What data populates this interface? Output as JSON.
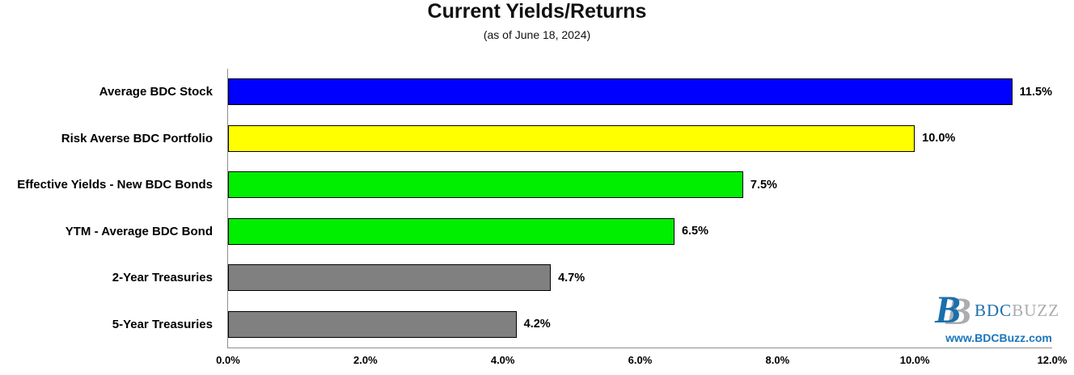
{
  "title": "Current Yields/Returns",
  "subtitle": "(as of June 18, 2024)",
  "chart_data": {
    "type": "bar",
    "orientation": "horizontal",
    "title": "Current Yields/Returns",
    "subtitle": "(as of June 18, 2024)",
    "categories": [
      "Average BDC Stock",
      "Risk Averse BDC Portfolio",
      "Effective Yields - New BDC Bonds",
      "YTM - Average BDC Bond",
      "2-Year Treasuries",
      "5-Year Treasuries"
    ],
    "values": [
      11.5,
      10.0,
      7.5,
      6.5,
      4.7,
      4.2
    ],
    "value_labels": [
      "11.5%",
      "10.0%",
      "7.5%",
      "6.5%",
      "4.7%",
      "4.2%"
    ],
    "bar_colors": [
      "#0000ff",
      "#ffff00",
      "#00ee00",
      "#00ee00",
      "#808080",
      "#808080"
    ],
    "bar_border_color": "#000000",
    "xlim": [
      0,
      12
    ],
    "x_ticks": [
      "0.0%",
      "2.0%",
      "4.0%",
      "6.0%",
      "8.0%",
      "10.0%",
      "12.0%"
    ],
    "xlabel": "",
    "ylabel": "",
    "grid": false,
    "legend": "none",
    "axis_line_color": "#8f8f8f"
  },
  "branding": {
    "monogram_letter": "B",
    "logo_text_primary": "BDC",
    "logo_text_secondary": "BUZZ",
    "website": "www.BDCBuzz.com",
    "brand_blue": "#1b6fad",
    "brand_gray": "#abadb0",
    "website_blue": "#1b75bb"
  }
}
